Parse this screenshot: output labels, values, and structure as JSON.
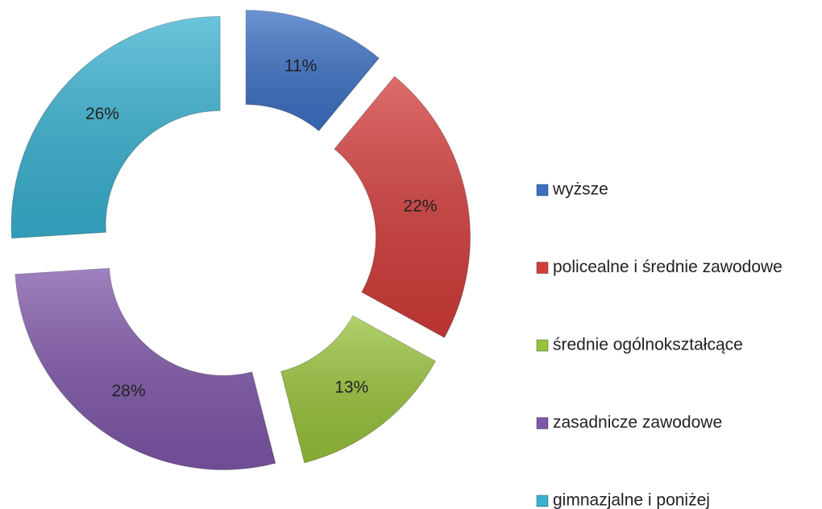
{
  "chart_data": {
    "type": "donut",
    "categories": [
      "wyższe",
      "policealne i średnie zawodowe",
      "średnie ogólnokształcące",
      "zasadnicze zawodowe",
      "gimnazjalne i poniżej"
    ],
    "values": [
      11,
      22,
      13,
      28,
      26
    ],
    "value_labels": [
      "11%",
      "22%",
      "13%",
      "28%",
      "26%"
    ],
    "colors": [
      "#3b70c4",
      "#d23c3a",
      "#98c23b",
      "#7e57a9",
      "#39b1d0"
    ],
    "legend": "right"
  }
}
